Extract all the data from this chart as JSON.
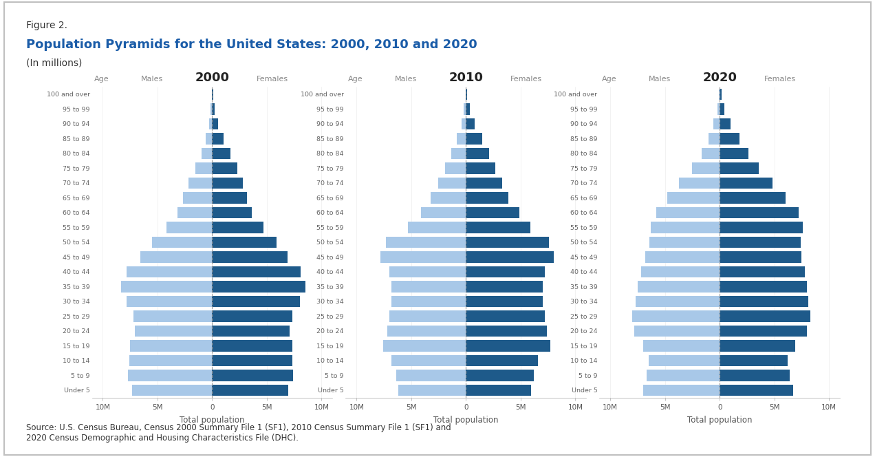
{
  "title_fig": "Figure 2.",
  "title_main": "Population Pyramids for the United States: 2000, 2010 and 2020",
  "title_sub": "(In millions)",
  "source_text": "Source: U.S. Census Bureau, Census 2000 Summary File 1 (SF1), 2010 Census Summary File 1 (SF1) and\n2020 Census Demographic and Housing Characteristics File (DHC).",
  "years": [
    "2000",
    "2010",
    "2020"
  ],
  "age_groups": [
    "100 and over",
    "95 to 99",
    "90 to 94",
    "85 to 89",
    "80 to 84",
    "75 to 79",
    "70 to 74",
    "65 to 69",
    "60 to 64",
    "55 to 59",
    "50 to 54",
    "45 to 49",
    "40 to 44",
    "35 to 39",
    "30 to 34",
    "25 to 29",
    "20 to 24",
    "15 to 19",
    "10 to 14",
    "5 to 9",
    "Under 5"
  ],
  "males_2000": [
    0.05,
    0.13,
    0.28,
    0.6,
    1.0,
    1.55,
    2.15,
    2.7,
    3.15,
    4.2,
    5.5,
    6.6,
    7.8,
    8.3,
    7.8,
    7.2,
    7.1,
    7.5,
    7.6,
    7.7,
    7.3
  ],
  "females_2000": [
    0.1,
    0.22,
    0.52,
    1.05,
    1.65,
    2.3,
    2.8,
    3.2,
    3.6,
    4.7,
    5.9,
    6.9,
    8.1,
    8.5,
    8.0,
    7.3,
    7.1,
    7.3,
    7.3,
    7.4,
    6.95
  ],
  "males_2010": [
    0.05,
    0.18,
    0.42,
    0.85,
    1.35,
    1.9,
    2.55,
    3.2,
    4.1,
    5.3,
    7.3,
    7.8,
    7.0,
    6.8,
    6.8,
    7.0,
    7.2,
    7.6,
    6.8,
    6.4,
    6.2
  ],
  "females_2010": [
    0.13,
    0.35,
    0.8,
    1.5,
    2.1,
    2.7,
    3.3,
    3.9,
    4.9,
    5.9,
    7.6,
    8.0,
    7.2,
    7.0,
    7.0,
    7.2,
    7.4,
    7.7,
    6.6,
    6.2,
    5.95
  ],
  "males_2020": [
    0.07,
    0.22,
    0.55,
    1.0,
    1.65,
    2.5,
    3.7,
    4.8,
    5.8,
    6.3,
    6.4,
    6.8,
    7.2,
    7.5,
    7.7,
    8.0,
    7.8,
    7.0,
    6.5,
    6.7,
    7.0
  ],
  "females_2020": [
    0.18,
    0.45,
    1.0,
    1.8,
    2.6,
    3.6,
    4.8,
    6.0,
    7.2,
    7.6,
    7.4,
    7.5,
    7.8,
    8.0,
    8.1,
    8.3,
    8.0,
    6.9,
    6.2,
    6.4,
    6.7
  ],
  "male_color": "#a8c8e8",
  "female_color": "#1e5a8a",
  "background_color": "#ffffff",
  "border_color": "#c0c0c0",
  "title_color": "#1a5ca8",
  "text_color": "#555555",
  "xlabel": "Total population",
  "xticks": [
    -10,
    -5,
    0,
    5,
    10
  ],
  "xticklabels": [
    "10M",
    "5M",
    "0",
    "5M",
    "10M"
  ]
}
